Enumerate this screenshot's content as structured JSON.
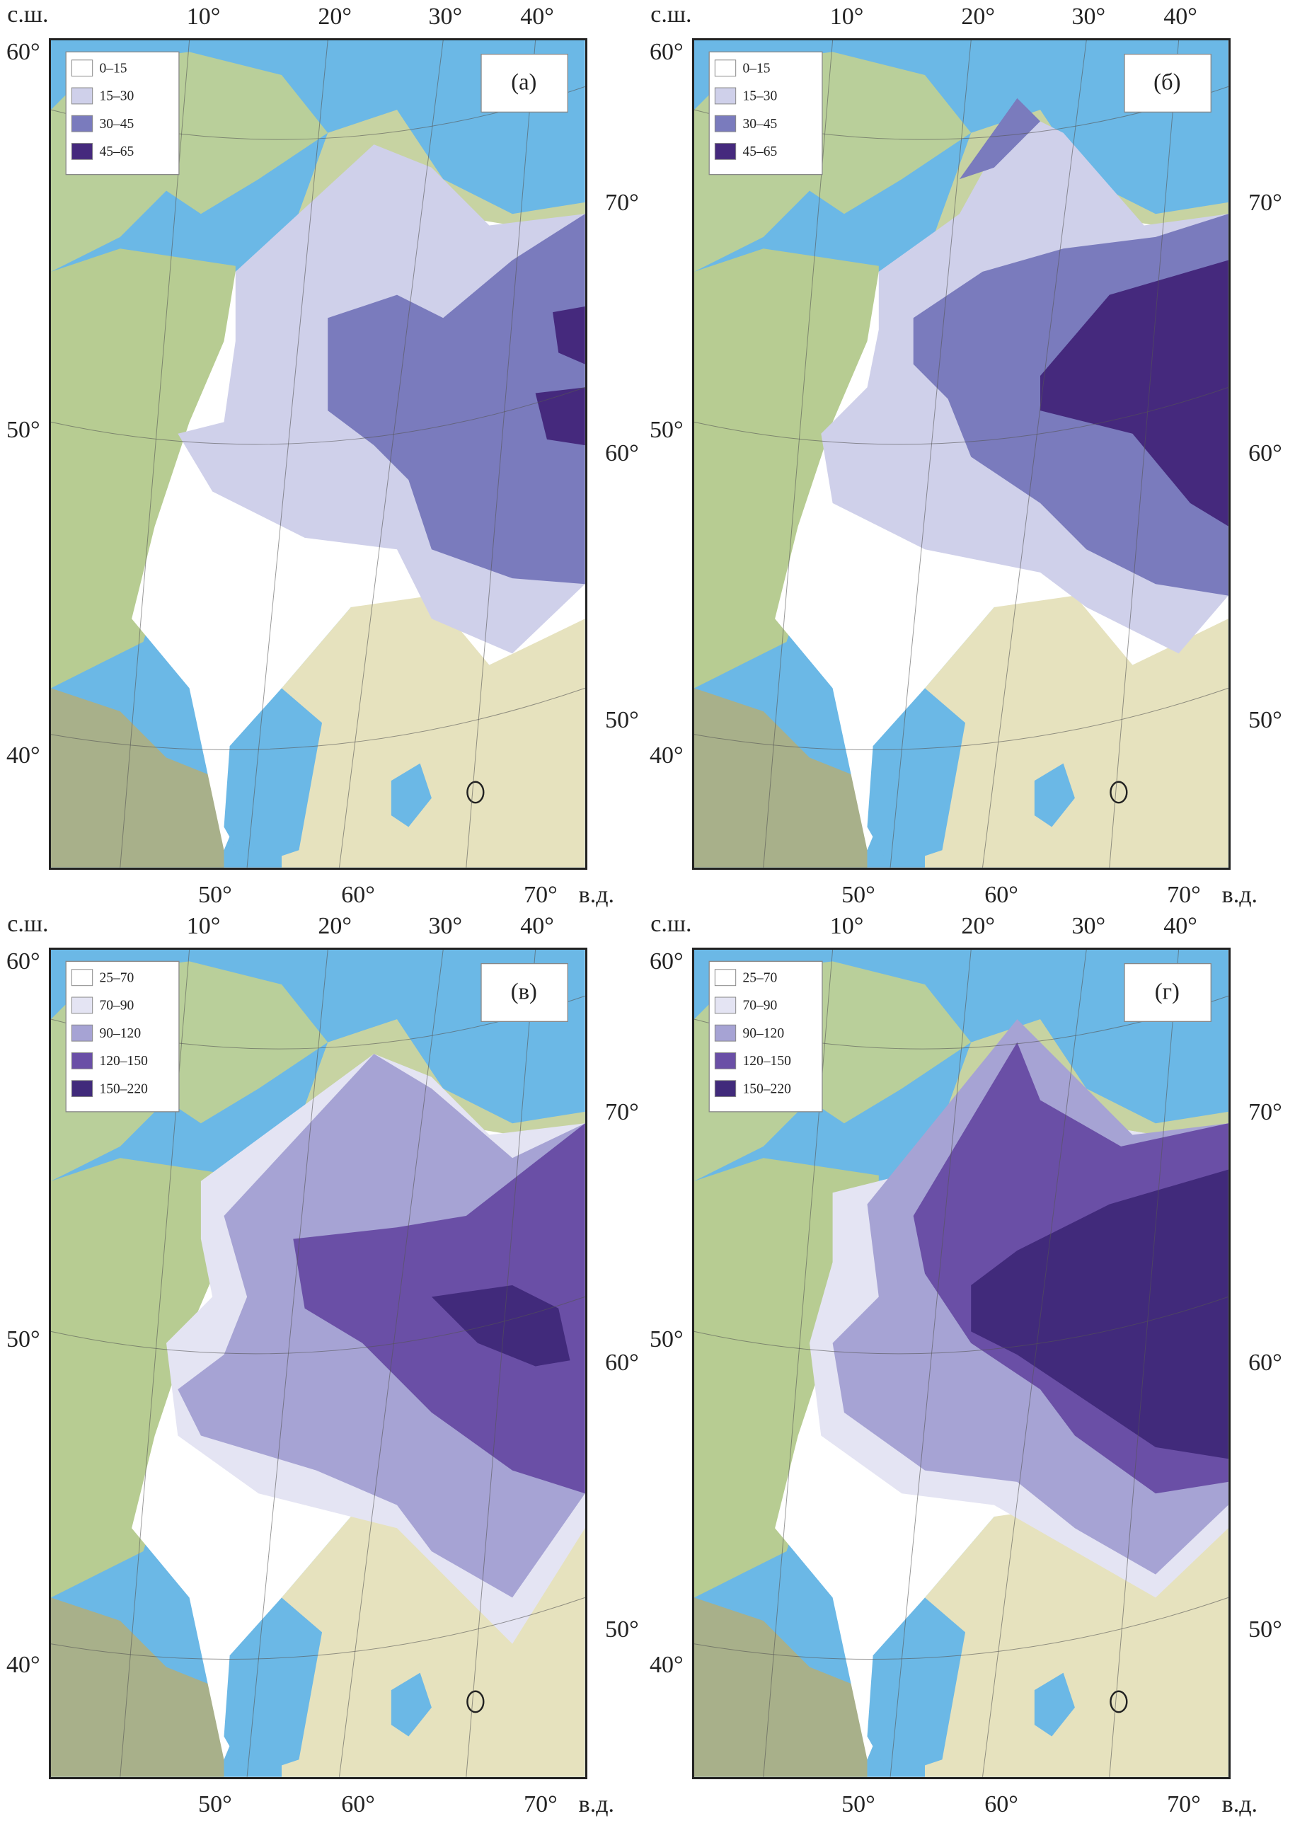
{
  "panels": [
    {
      "label": "(а)",
      "lat_unit": "с.ш.",
      "lon_unit": "в.д.",
      "lon_top": [
        "10°",
        "20°",
        "30°",
        "40°"
      ],
      "lat_left": [
        "60°",
        "50°",
        "40°"
      ],
      "lat_right": [
        "70°",
        "60°",
        "50°"
      ],
      "lon_bottom": [
        "50°",
        "60°",
        "70°"
      ],
      "legend": [
        {
          "label": "0–15",
          "color": "#ffffff"
        },
        {
          "label": "15–30",
          "color": "#cfd0ea"
        },
        {
          "label": "30–45",
          "color": "#7a7bbd"
        },
        {
          "label": "45–65",
          "color": "#45297d"
        }
      ]
    },
    {
      "label": "(б)",
      "lat_unit": "с.ш.",
      "lon_unit": "в.д.",
      "lon_top": [
        "10°",
        "20°",
        "30°",
        "40°"
      ],
      "lat_left": [
        "60°",
        "50°",
        "40°"
      ],
      "lat_right": [
        "70°",
        "60°",
        "50°"
      ],
      "lon_bottom": [
        "50°",
        "60°",
        "70°"
      ],
      "legend": [
        {
          "label": "0–15",
          "color": "#ffffff"
        },
        {
          "label": "15–30",
          "color": "#cfd0ea"
        },
        {
          "label": "30–45",
          "color": "#7a7bbd"
        },
        {
          "label": "45–65",
          "color": "#45297d"
        }
      ]
    },
    {
      "label": "(в)",
      "lat_unit": "с.ш.",
      "lon_unit": "в.д.",
      "lon_top": [
        "10°",
        "20°",
        "30°",
        "40°"
      ],
      "lat_left": [
        "60°",
        "50°",
        "40°"
      ],
      "lat_right": [
        "70°",
        "60°",
        "50°"
      ],
      "lon_bottom": [
        "50°",
        "60°",
        "70°"
      ],
      "legend": [
        {
          "label": "25–70",
          "color": "#ffffff"
        },
        {
          "label": "70–90",
          "color": "#e4e4f3"
        },
        {
          "label": "90–120",
          "color": "#a6a3d4"
        },
        {
          "label": "120–150",
          "color": "#6a4fa6"
        },
        {
          "label": "150–220",
          "color": "#412a7b"
        }
      ]
    },
    {
      "label": "(г)",
      "lat_unit": "с.ш.",
      "lon_unit": "в.д.",
      "lon_top": [
        "10°",
        "20°",
        "30°",
        "40°"
      ],
      "lat_left": [
        "60°",
        "50°",
        "40°"
      ],
      "lat_right": [
        "70°",
        "60°",
        "50°"
      ],
      "lon_bottom": [
        "50°",
        "60°",
        "70°"
      ],
      "legend": [
        {
          "label": "25–70",
          "color": "#ffffff"
        },
        {
          "label": "70–90",
          "color": "#e4e4f3"
        },
        {
          "label": "90–120",
          "color": "#a6a3d4"
        },
        {
          "label": "120–150",
          "color": "#6a4fa6"
        },
        {
          "label": "150–220",
          "color": "#412a7b"
        }
      ]
    }
  ]
}
